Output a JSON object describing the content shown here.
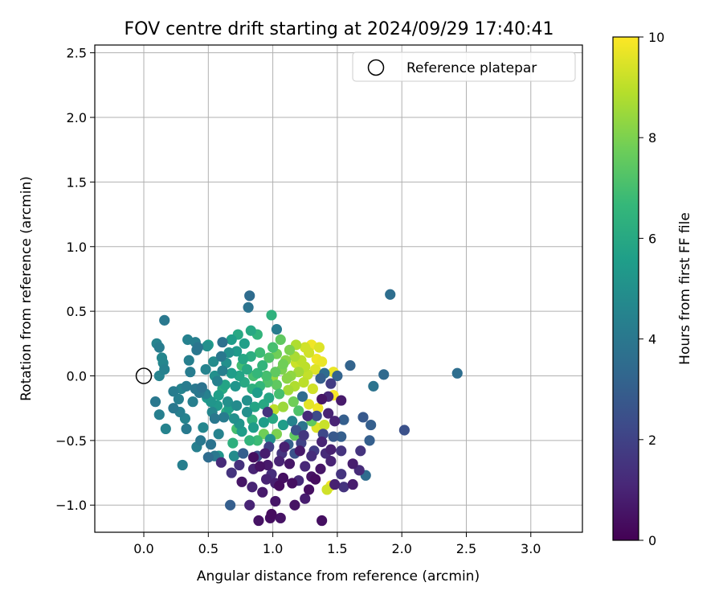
{
  "chart_data": {
    "type": "scatter",
    "title": "FOV centre drift starting at 2024/09/29 17:40:41",
    "xlabel": "Angular distance from reference (arcmin)",
    "ylabel": "Rotation from reference (arcmin)",
    "xlim": [
      -0.38,
      3.4
    ],
    "ylim": [
      -1.21,
      2.56
    ],
    "x_ticks": [
      "0.0",
      "0.5",
      "1.0",
      "1.5",
      "2.0",
      "2.5",
      "3.0"
    ],
    "y_ticks": [
      "−1.0",
      "−0.5",
      "0.0",
      "0.5",
      "1.0",
      "1.5",
      "2.0",
      "2.5"
    ],
    "grid": true,
    "legend": {
      "position": "top-right",
      "label": "Reference platepar"
    },
    "reference_point": {
      "x": 0.0,
      "y": 0.0
    },
    "colorbar": {
      "label": "Hours from first FF file",
      "range": [
        0,
        10
      ],
      "ticks": [
        "0",
        "2",
        "4",
        "6",
        "8",
        "10"
      ],
      "colormap": [
        "#440154",
        "#482878",
        "#3e4989",
        "#31688e",
        "#26828e",
        "#1f9e89",
        "#35b779",
        "#6ece58",
        "#b5de2b",
        "#fde725"
      ]
    },
    "points": [
      [
        0.89,
        -1.12,
        0.5
      ],
      [
        1.38,
        -1.12,
        0.4
      ],
      [
        0.98,
        -1.1,
        0.4
      ],
      [
        1.06,
        -1.1,
        0.5
      ],
      [
        0.99,
        -1.07,
        0.3
      ],
      [
        0.67,
        -1.0,
        3.0
      ],
      [
        0.82,
        -1.0,
        1.0
      ],
      [
        1.17,
        -1.0,
        0.5
      ],
      [
        1.25,
        -0.95,
        0.8
      ],
      [
        1.02,
        -0.97,
        0.6
      ],
      [
        0.92,
        -0.9,
        0.7
      ],
      [
        1.28,
        -0.88,
        0.4
      ],
      [
        1.45,
        -0.85,
        9.8
      ],
      [
        1.48,
        -0.84,
        0.9
      ],
      [
        1.55,
        -0.86,
        1.5
      ],
      [
        1.62,
        -0.84,
        0.8
      ],
      [
        1.42,
        -0.88,
        9.3
      ],
      [
        0.84,
        -0.86,
        1.0
      ],
      [
        1.05,
        -0.85,
        0.3
      ],
      [
        1.15,
        -0.83,
        0.4
      ],
      [
        0.76,
        -0.82,
        0.6
      ],
      [
        1.08,
        -0.79,
        0.4
      ],
      [
        1.3,
        -0.78,
        0.5
      ],
      [
        1.33,
        -0.8,
        0.3
      ],
      [
        1.2,
        -0.81,
        1.2
      ],
      [
        0.68,
        -0.75,
        1.5
      ],
      [
        0.99,
        -0.76,
        1.3
      ],
      [
        1.53,
        -0.76,
        1.5
      ],
      [
        1.72,
        -0.77,
        3.5
      ],
      [
        1.67,
        -0.73,
        1.2
      ],
      [
        0.85,
        -0.72,
        1.0
      ],
      [
        0.9,
        -0.7,
        0.5
      ],
      [
        0.96,
        -0.69,
        0.7
      ],
      [
        1.25,
        -0.7,
        1.1
      ],
      [
        1.37,
        -0.72,
        0.6
      ],
      [
        0.3,
        -0.69,
        4.3
      ],
      [
        0.6,
        -0.67,
        1.2
      ],
      [
        1.05,
        -0.66,
        1.0
      ],
      [
        1.45,
        -0.66,
        1.0
      ],
      [
        1.62,
        -0.68,
        0.8
      ],
      [
        0.55,
        -0.62,
        4.0
      ],
      [
        0.5,
        -0.63,
        3.5
      ],
      [
        0.58,
        -0.62,
        5.2
      ],
      [
        0.7,
        -0.62,
        4.8
      ],
      [
        0.77,
        -0.6,
        3.0
      ],
      [
        0.85,
        -0.63,
        0.4
      ],
      [
        0.94,
        -0.6,
        0.8
      ],
      [
        1.07,
        -0.6,
        1.5
      ],
      [
        1.17,
        -0.6,
        2.5
      ],
      [
        1.32,
        -0.58,
        1.8
      ],
      [
        1.45,
        -0.57,
        0.9
      ],
      [
        1.53,
        -0.58,
        1.5
      ],
      [
        1.68,
        -0.58,
        1.5
      ],
      [
        0.41,
        -0.55,
        4.3
      ],
      [
        0.44,
        -0.5,
        4.0
      ],
      [
        0.52,
        -0.53,
        3.8
      ],
      [
        0.69,
        -0.52,
        6.3
      ],
      [
        0.82,
        -0.5,
        6.5
      ],
      [
        0.88,
        -0.5,
        6.8
      ],
      [
        0.98,
        -0.49,
        5.0
      ],
      [
        1.12,
        -0.53,
        3.0
      ],
      [
        1.22,
        -0.52,
        2.0
      ],
      [
        1.38,
        -0.51,
        1.0
      ],
      [
        1.47,
        -0.47,
        2.8
      ],
      [
        1.53,
        -0.47,
        3.0
      ],
      [
        1.75,
        -0.5,
        3.0
      ],
      [
        2.02,
        -0.42,
        2.5
      ],
      [
        1.76,
        -0.38,
        3.0
      ],
      [
        1.7,
        -0.32,
        2.8
      ],
      [
        0.33,
        -0.41,
        4.1
      ],
      [
        0.17,
        -0.41,
        4.5
      ],
      [
        0.12,
        -0.3,
        4.3
      ],
      [
        0.23,
        -0.25,
        4.0
      ],
      [
        0.28,
        -0.28,
        4.3
      ],
      [
        0.32,
        -0.33,
        4.5
      ],
      [
        0.55,
        -0.33,
        4.0
      ],
      [
        0.62,
        -0.32,
        4.2
      ],
      [
        0.7,
        -0.33,
        5.0
      ],
      [
        0.74,
        -0.37,
        5.2
      ],
      [
        0.85,
        -0.4,
        5.5
      ],
      [
        0.93,
        -0.36,
        5.5
      ],
      [
        1.0,
        -0.33,
        6.0
      ],
      [
        1.08,
        -0.38,
        5.5
      ],
      [
        1.15,
        -0.35,
        4.5
      ],
      [
        1.23,
        -0.39,
        3.8
      ],
      [
        1.3,
        -0.35,
        7.5
      ],
      [
        1.34,
        -0.4,
        9.5
      ],
      [
        1.4,
        -0.38,
        9.2
      ],
      [
        1.48,
        -0.35,
        1.0
      ],
      [
        1.55,
        -0.34,
        3.0
      ],
      [
        0.09,
        -0.2,
        4.0
      ],
      [
        0.27,
        -0.18,
        4.3
      ],
      [
        0.43,
        -0.13,
        4.0
      ],
      [
        0.48,
        -0.14,
        4.4
      ],
      [
        0.52,
        -0.2,
        5.2
      ],
      [
        0.57,
        -0.23,
        5.3
      ],
      [
        0.65,
        -0.2,
        5.0
      ],
      [
        0.72,
        -0.23,
        4.8
      ],
      [
        0.8,
        -0.19,
        5.0
      ],
      [
        0.86,
        -0.24,
        5.8
      ],
      [
        0.93,
        -0.22,
        6.0
      ],
      [
        1.01,
        -0.26,
        9.0
      ],
      [
        1.08,
        -0.24,
        8.5
      ],
      [
        1.16,
        -0.2,
        7.8
      ],
      [
        1.23,
        -0.16,
        3.5
      ],
      [
        1.28,
        -0.22,
        9.6
      ],
      [
        1.35,
        -0.25,
        9.8
      ],
      [
        1.38,
        -0.18,
        0.6
      ],
      [
        1.43,
        -0.16,
        1.1
      ],
      [
        1.53,
        -0.19,
        0.7
      ],
      [
        0.29,
        -0.1,
        4.5
      ],
      [
        0.33,
        -0.08,
        4.2
      ],
      [
        0.4,
        -0.1,
        4.0
      ],
      [
        0.45,
        -0.09,
        3.8
      ],
      [
        0.57,
        -0.04,
        4.4
      ],
      [
        0.63,
        -0.07,
        5.8
      ],
      [
        0.71,
        -0.08,
        5.2
      ],
      [
        0.78,
        -0.05,
        6.0
      ],
      [
        0.84,
        -0.1,
        6.3
      ],
      [
        0.9,
        -0.08,
        6.6
      ],
      [
        0.96,
        -0.05,
        7.2
      ],
      [
        1.03,
        -0.07,
        7.5
      ],
      [
        1.11,
        -0.02,
        8.2
      ],
      [
        1.17,
        -0.08,
        8.8
      ],
      [
        1.24,
        -0.05,
        9.0
      ],
      [
        1.31,
        -0.1,
        9.3
      ],
      [
        1.37,
        -0.02,
        3.0
      ],
      [
        1.45,
        -0.06,
        1.8
      ],
      [
        1.47,
        -0.15,
        9.9
      ],
      [
        1.5,
        0.0,
        3.2
      ],
      [
        0.12,
        0.0,
        4.5
      ],
      [
        0.16,
        0.05,
        4.4
      ],
      [
        0.36,
        0.03,
        4.2
      ],
      [
        0.48,
        0.05,
        4.5
      ],
      [
        0.55,
        0.0,
        5.0
      ],
      [
        0.61,
        0.04,
        4.3
      ],
      [
        0.68,
        0.02,
        5.5
      ],
      [
        0.74,
        0.0,
        5.8
      ],
      [
        0.8,
        0.05,
        6.0
      ],
      [
        0.88,
        0.02,
        6.6
      ],
      [
        0.95,
        0.0,
        7.0
      ],
      [
        1.02,
        0.03,
        7.5
      ],
      [
        1.07,
        0.05,
        8.0
      ],
      [
        1.14,
        0.0,
        8.3
      ],
      [
        1.2,
        0.03,
        8.6
      ],
      [
        1.27,
        0.01,
        9.1
      ],
      [
        1.33,
        0.05,
        9.5
      ],
      [
        1.4,
        0.02,
        3.5
      ],
      [
        1.47,
        0.03,
        9.7
      ],
      [
        1.6,
        0.08,
        3.2
      ],
      [
        1.86,
        0.01,
        3.4
      ],
      [
        2.43,
        0.02,
        3.6
      ],
      [
        1.78,
        -0.08,
        3.8
      ],
      [
        0.15,
        0.1,
        4.6
      ],
      [
        0.14,
        0.14,
        4.6
      ],
      [
        0.12,
        0.22,
        4.2
      ],
      [
        0.1,
        0.25,
        4.5
      ],
      [
        0.35,
        0.12,
        4.3
      ],
      [
        0.41,
        0.2,
        4.0
      ],
      [
        0.49,
        0.23,
        5.0
      ],
      [
        0.54,
        0.11,
        4.8
      ],
      [
        0.6,
        0.15,
        4.0
      ],
      [
        0.66,
        0.18,
        5.0
      ],
      [
        0.72,
        0.19,
        5.4
      ],
      [
        0.77,
        0.13,
        5.9
      ],
      [
        0.83,
        0.15,
        6.2
      ],
      [
        0.9,
        0.18,
        6.8
      ],
      [
        0.97,
        0.14,
        7.2
      ],
      [
        1.03,
        0.17,
        7.8
      ],
      [
        1.1,
        0.12,
        8.2
      ],
      [
        1.17,
        0.15,
        8.7
      ],
      [
        1.22,
        0.12,
        9.0
      ],
      [
        1.28,
        0.18,
        9.3
      ],
      [
        1.34,
        0.13,
        9.8
      ],
      [
        0.4,
        0.26,
        4.3
      ],
      [
        0.42,
        0.22,
        3.9
      ],
      [
        0.61,
        0.26,
        3.7
      ],
      [
        0.68,
        0.28,
        5.5
      ],
      [
        0.73,
        0.32,
        6.0
      ],
      [
        0.78,
        0.25,
        5.6
      ],
      [
        0.88,
        0.32,
        6.5
      ],
      [
        1.0,
        0.22,
        7.0
      ],
      [
        1.06,
        0.28,
        7.5
      ],
      [
        1.13,
        0.2,
        8.0
      ],
      [
        1.18,
        0.24,
        8.8
      ],
      [
        1.25,
        0.22,
        9.3
      ],
      [
        1.3,
        0.24,
        9.8
      ],
      [
        1.36,
        0.22,
        9.5
      ],
      [
        0.34,
        0.28,
        4.4
      ],
      [
        0.16,
        0.43,
        4.0
      ],
      [
        0.83,
        0.35,
        6.0
      ],
      [
        1.03,
        0.36,
        4.2
      ],
      [
        0.99,
        0.47,
        6.4
      ],
      [
        0.82,
        0.62,
        3.5
      ],
      [
        0.81,
        0.53,
        3.8
      ],
      [
        1.91,
        0.63,
        3.6
      ],
      [
        0.5,
        0.24,
        5.5
      ],
      [
        0.58,
        -0.15,
        5.6
      ],
      [
        0.64,
        -0.28,
        6.2
      ],
      [
        0.8,
        -0.28,
        5.0
      ],
      [
        0.88,
        -0.13,
        5.5
      ],
      [
        0.97,
        -0.17,
        5.9
      ],
      [
        1.05,
        -0.14,
        7.0
      ],
      [
        1.12,
        -0.11,
        8.6
      ],
      [
        1.2,
        -0.27,
        7.2
      ],
      [
        1.27,
        -0.31,
        1.2
      ],
      [
        1.43,
        -0.29,
        1.0
      ],
      [
        1.39,
        -0.45,
        2.2
      ],
      [
        1.17,
        -0.46,
        7.5
      ],
      [
        1.03,
        -0.45,
        8.0
      ],
      [
        0.93,
        -0.45,
        7.8
      ],
      [
        0.76,
        -0.43,
        5.5
      ],
      [
        0.58,
        -0.45,
        4.5
      ],
      [
        0.46,
        -0.4,
        4.6
      ],
      [
        0.38,
        -0.2,
        4.3
      ],
      [
        0.23,
        -0.12,
        4.2
      ],
      [
        0.64,
        0.1,
        5.0
      ],
      [
        0.92,
        0.08,
        6.5
      ],
      [
        1.08,
        0.09,
        7.8
      ],
      [
        1.25,
        0.07,
        9.0
      ],
      [
        1.38,
        0.11,
        9.7
      ],
      [
        0.96,
        -0.28,
        1.5
      ],
      [
        1.09,
        -0.55,
        0.9
      ],
      [
        1.21,
        -0.58,
        0.7
      ],
      [
        1.13,
        -0.68,
        0.6
      ],
      [
        1.02,
        -0.83,
        0.9
      ],
      [
        0.95,
        -0.8,
        1.0
      ],
      [
        1.3,
        -0.62,
        1.3
      ],
      [
        1.41,
        -0.6,
        1.2
      ],
      [
        0.74,
        -0.69,
        1.4
      ],
      [
        0.88,
        -0.62,
        2.3
      ],
      [
        0.97,
        -0.55,
        1.9
      ],
      [
        1.18,
        -0.42,
        2.5
      ],
      [
        1.24,
        -0.46,
        1.6
      ],
      [
        1.34,
        -0.31,
        2.3
      ],
      [
        0.84,
        -0.34,
        6.4
      ],
      [
        0.72,
        -0.41,
        7.0
      ],
      [
        0.66,
        -0.25,
        5.6
      ],
      [
        0.53,
        -0.28,
        4.6
      ],
      [
        0.49,
        -0.17,
        5.4
      ],
      [
        0.61,
        -0.1,
        6.1
      ],
      [
        0.76,
        0.08,
        6.9
      ],
      [
        0.85,
        0.0,
        7.0
      ],
      [
        1.0,
        -0.01,
        8.4
      ],
      [
        1.18,
        0.1,
        9.2
      ]
    ]
  }
}
